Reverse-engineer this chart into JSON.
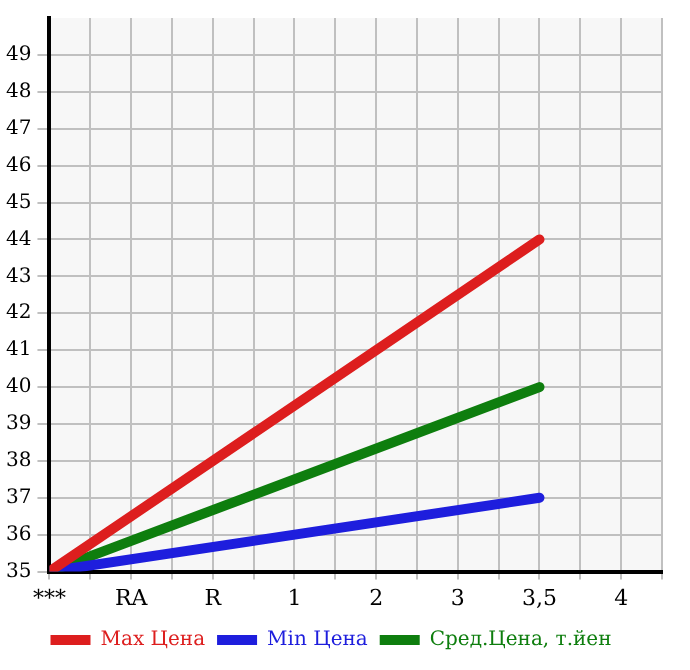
{
  "chart_data": {
    "type": "line",
    "categories": [
      "***",
      "RA",
      "R",
      "1",
      "2",
      "3",
      "3,5",
      "4"
    ],
    "series": [
      {
        "name": "Max Цена",
        "color": "#dd1e1e",
        "values": [
          35,
          null,
          null,
          null,
          null,
          null,
          44,
          null
        ]
      },
      {
        "name": "Min Цена",
        "color": "#1e1edd",
        "values": [
          35,
          null,
          null,
          null,
          null,
          null,
          37,
          null
        ]
      },
      {
        "name": "Сред.Цена, т.йен",
        "color": "#0e7e0e",
        "values": [
          35,
          null,
          null,
          null,
          null,
          null,
          40,
          null
        ]
      }
    ],
    "ylim": [
      35,
      50
    ],
    "yticks": [
      35,
      36,
      37,
      38,
      39,
      40,
      41,
      42,
      43,
      44,
      45,
      46,
      47,
      48,
      49
    ],
    "grid": true,
    "legend": "bottom",
    "marker": "none",
    "line_style": "solid"
  }
}
